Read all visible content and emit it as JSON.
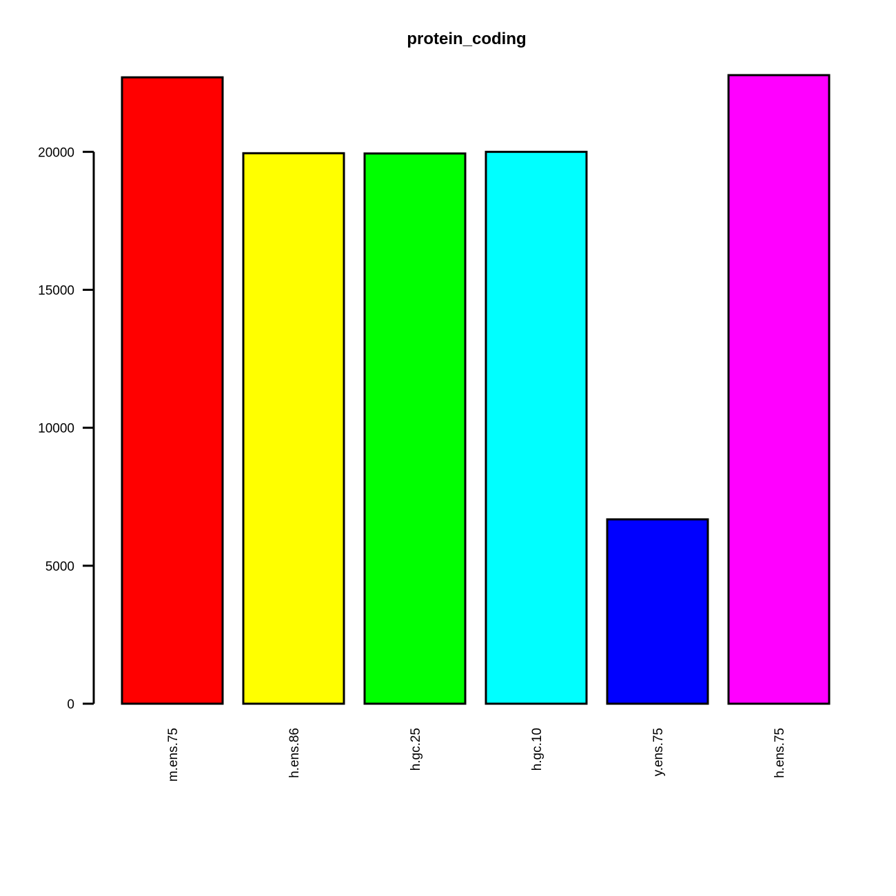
{
  "chart_data": {
    "type": "bar",
    "title": "protein_coding",
    "xlabel": "",
    "ylabel": "",
    "categories": [
      "m.ens.75",
      "h.ens.86",
      "h.gc.25",
      "h.gc.10",
      "y.ens.75",
      "h.ens.75"
    ],
    "values": [
      22700,
      19950,
      19940,
      20000,
      6680,
      22780
    ],
    "colors": [
      "#ff0000",
      "#ffff00",
      "#00ff00",
      "#00ffff",
      "#0000ff",
      "#ff00ff"
    ],
    "ylim": [
      0,
      22780
    ],
    "yticks": [
      0,
      5000,
      10000,
      15000,
      20000
    ],
    "ytick_labels": [
      "0",
      "5000",
      "10000",
      "15000",
      "20000"
    ],
    "grid": false,
    "legend": "none"
  }
}
